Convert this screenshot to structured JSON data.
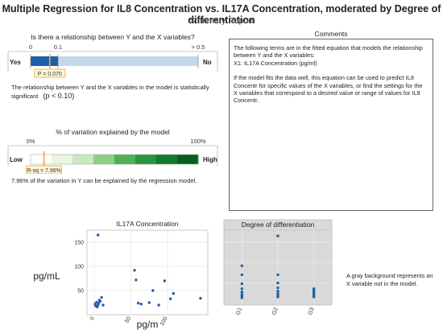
{
  "header": {
    "title": "Multiple Regression for IL8 Concentration vs. IL17A Concentration, moderated by Degree of differentiation",
    "subtitle": "Summary Report"
  },
  "relationship": {
    "title": "Is there a relationship between Y and the X variables?",
    "ticks": [
      "0",
      "0.1",
      "> 0.5"
    ],
    "left_label": "Yes",
    "right_label": "No",
    "p_value": 0.07,
    "p_label": "P = 0.070",
    "note": "The relationship between Y and the X variables in the model is statistically significant",
    "note_p": "(p < 0.10)",
    "colors": {
      "fill": "#1f5fa8",
      "track": "#c6d7ee",
      "marker": "#f0a830"
    }
  },
  "variation": {
    "title": "% of variation explained by the model",
    "ticks": [
      "0%",
      "100%"
    ],
    "left_label": "Low",
    "right_label": "High",
    "r_sq_percent": 7.96,
    "rsq_label": "R-sq = 7.96%",
    "gradient": [
      "#ffffff",
      "#e9f5e2",
      "#c9e8bd",
      "#8fcf83",
      "#4fb057",
      "#2a9440",
      "#137a2e",
      "#0a5e20"
    ],
    "note": "7.96% of the variation in Y can be explained by the regression model."
  },
  "comments": {
    "title": "Comments",
    "paragraphs": [
      "The following terms are in the fitted equation that models the relationship between Y and the X variables:",
      "X1: IL17A Concentration (pg/ml)",
      "If the model fits the data well, this equation can be used to predict IL8 Concentr for specific values of the X variables, or find the settings for the X variables that correspond to a desired value or range of values for IL8 Concentr."
    ]
  },
  "chart_data": [
    {
      "type": "scatter",
      "title": "IL17A Concentration",
      "ylabel": "pg/mL",
      "xlabel": "pg/m",
      "xlim": [
        -10,
        155
      ],
      "ylim": [
        0,
        175
      ],
      "xticks": [
        "0",
        "50",
        "100"
      ],
      "xtick_values": [
        0,
        50,
        100
      ],
      "yticks": [
        "50",
        "100",
        "150"
      ],
      "ytick_values": [
        50,
        100,
        150
      ],
      "grid": true,
      "point_color": "#1f5fa8",
      "points": [
        [
          1,
          22
        ],
        [
          2,
          18
        ],
        [
          3,
          26
        ],
        [
          4,
          16
        ],
        [
          5,
          20
        ],
        [
          6,
          24
        ],
        [
          7,
          30
        ],
        [
          8,
          28
        ],
        [
          10,
          36
        ],
        [
          12,
          20
        ],
        [
          5,
          165
        ],
        [
          55,
          92
        ],
        [
          57,
          72
        ],
        [
          60,
          24
        ],
        [
          64,
          22
        ],
        [
          75,
          25
        ],
        [
          80,
          50
        ],
        [
          88,
          20
        ],
        [
          96,
          70
        ],
        [
          104,
          33
        ],
        [
          108,
          44
        ],
        [
          145,
          34
        ]
      ]
    },
    {
      "type": "scatter",
      "title": "Degree of differentiation",
      "categories": [
        "G1",
        "G2",
        "G3"
      ],
      "ylim": [
        0,
        175
      ],
      "grid": true,
      "background": "#d9d9d9",
      "point_color": "#1f5fa8",
      "points": [
        [
          "G1",
          92
        ],
        [
          "G1",
          70
        ],
        [
          "G1",
          48
        ],
        [
          "G1",
          36
        ],
        [
          "G1",
          28
        ],
        [
          "G1",
          22
        ],
        [
          "G1",
          18
        ],
        [
          "G1",
          14
        ],
        [
          "G2",
          165
        ],
        [
          "G2",
          70
        ],
        [
          "G2",
          50
        ],
        [
          "G2",
          38
        ],
        [
          "G2",
          30
        ],
        [
          "G2",
          24
        ],
        [
          "G2",
          20
        ],
        [
          "G2",
          16
        ],
        [
          "G3",
          36
        ],
        [
          "G3",
          32
        ],
        [
          "G3",
          28
        ],
        [
          "G3",
          24
        ],
        [
          "G3",
          20
        ],
        [
          "G3",
          16
        ]
      ],
      "note": "A gray background represents an X variable not in the model."
    }
  ]
}
